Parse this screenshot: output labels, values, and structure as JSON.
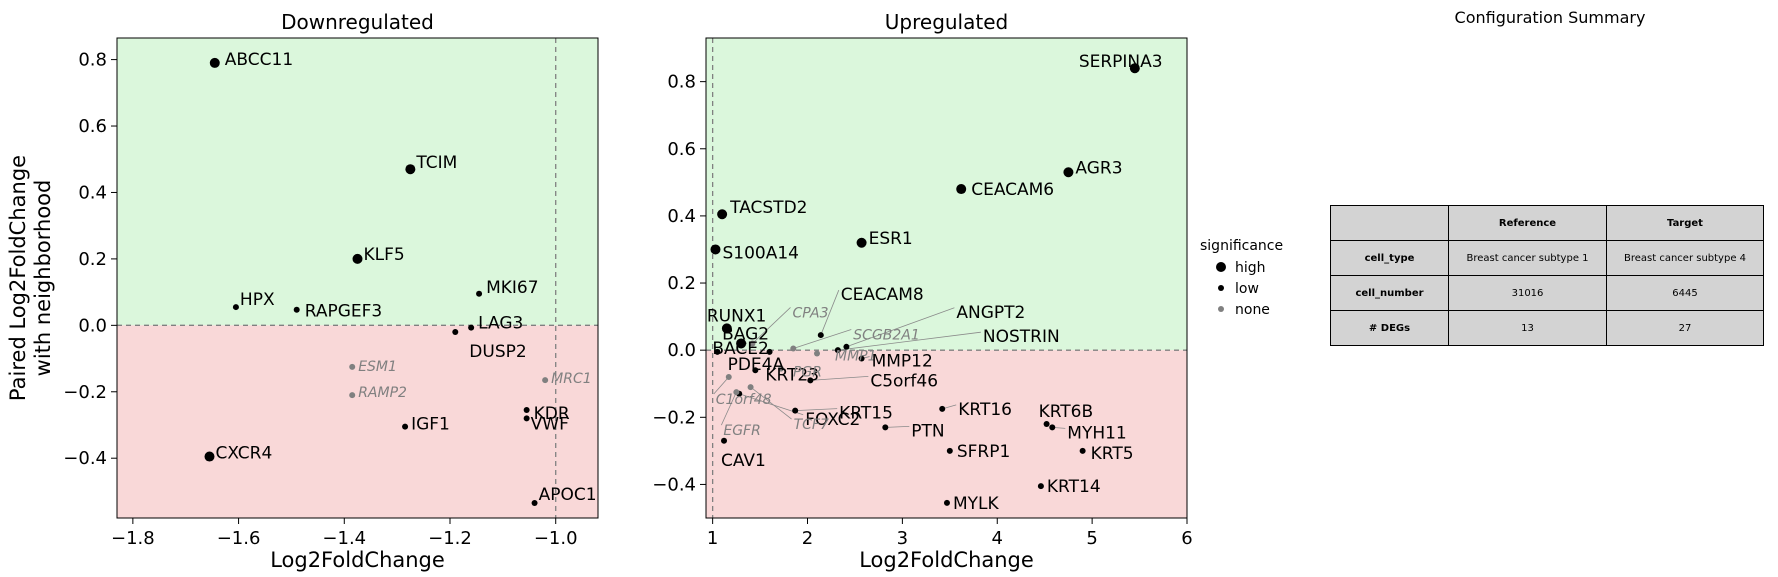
{
  "chart_data": [
    {
      "type": "scatter",
      "title": "Downregulated",
      "xlabel": "Log2FoldChange",
      "ylabel": [
        "Paired Log2FoldChange",
        "with neighborhood"
      ],
      "xlim": [
        -1.83,
        -0.92
      ],
      "ylim": [
        -0.58,
        0.865
      ],
      "xticks": [
        -1.8,
        -1.6,
        -1.4,
        -1.2,
        -1.0
      ],
      "xtick_labels": [
        "−1.8",
        "−1.6",
        "−1.4",
        "−1.2",
        "−1.0"
      ],
      "yticks": [
        -0.4,
        -0.2,
        0.0,
        0.2,
        0.4,
        0.6,
        0.8
      ],
      "ytick_labels": [
        "−0.4",
        "−0.2",
        "0.0",
        "0.2",
        "0.4",
        "0.6",
        "0.8"
      ],
      "vline": -1.0,
      "hline": 0.0,
      "points": [
        {
          "label": "ABCC11",
          "x": -1.645,
          "y": 0.79,
          "sig": "high"
        },
        {
          "label": "TCIM",
          "x": -1.275,
          "y": 0.47,
          "sig": "high"
        },
        {
          "label": "KLF5",
          "x": -1.375,
          "y": 0.2,
          "sig": "high"
        },
        {
          "label": "HPX",
          "x": -1.605,
          "y": 0.055,
          "sig": "low"
        },
        {
          "label": "RAPGEF3",
          "x": -1.49,
          "y": 0.047,
          "sig": "low"
        },
        {
          "label": "MKI67",
          "x": -1.145,
          "y": 0.095,
          "sig": "low"
        },
        {
          "label": "LAG3",
          "x": -1.16,
          "y": -0.007,
          "sig": "low"
        },
        {
          "label": "DUSP2",
          "x": -1.19,
          "y": -0.02,
          "sig": "low"
        },
        {
          "label": "ESM1",
          "x": -1.385,
          "y": -0.125,
          "sig": "none"
        },
        {
          "label": "RAMP2",
          "x": -1.385,
          "y": -0.21,
          "sig": "none"
        },
        {
          "label": "MRC1",
          "x": -1.02,
          "y": -0.165,
          "sig": "none"
        },
        {
          "label": "KDR",
          "x": -1.055,
          "y": -0.255,
          "sig": "low"
        },
        {
          "label": "VWF",
          "x": -1.055,
          "y": -0.28,
          "sig": "low"
        },
        {
          "label": "IGF1",
          "x": -1.285,
          "y": -0.305,
          "sig": "low"
        },
        {
          "label": "CXCR4",
          "x": -1.655,
          "y": -0.395,
          "sig": "high"
        },
        {
          "label": "APOC1",
          "x": -1.04,
          "y": -0.535,
          "sig": "low"
        }
      ]
    },
    {
      "type": "scatter",
      "title": "Upregulated",
      "xlabel": "Log2FoldChange",
      "xlim": [
        0.93,
        6.0
      ],
      "ylim": [
        -0.5,
        0.93
      ],
      "xticks": [
        1,
        2,
        3,
        4,
        5,
        6
      ],
      "xtick_labels": [
        "1",
        "2",
        "3",
        "4",
        "5",
        "6"
      ],
      "yticks": [
        -0.4,
        -0.2,
        0.0,
        0.2,
        0.4,
        0.6,
        0.8
      ],
      "ytick_labels": [
        "−0.4",
        "−0.2",
        "0.0",
        "0.2",
        "0.4",
        "0.6",
        "0.8"
      ],
      "vline": 1.0,
      "hline": 0.0,
      "points": [
        {
          "label": "SERPINA3",
          "x": 5.45,
          "y": 0.84,
          "sig": "high"
        },
        {
          "label": "AGR3",
          "x": 4.75,
          "y": 0.53,
          "sig": "high"
        },
        {
          "label": "CEACAM6",
          "x": 3.62,
          "y": 0.48,
          "sig": "high"
        },
        {
          "label": "TACSTD2",
          "x": 1.1,
          "y": 0.405,
          "sig": "high"
        },
        {
          "label": "ESR1",
          "x": 2.57,
          "y": 0.32,
          "sig": "high"
        },
        {
          "label": "S100A14",
          "x": 1.03,
          "y": 0.3,
          "sig": "high"
        },
        {
          "label": "RUNX1",
          "x": 1.15,
          "y": 0.065,
          "sig": "high"
        },
        {
          "label": "CEACAM8",
          "x": 2.14,
          "y": 0.045,
          "sig": "low"
        },
        {
          "label": "ANGPT2",
          "x": 2.41,
          "y": 0.01,
          "sig": "low"
        },
        {
          "label": "NOSTRIN",
          "x": 2.32,
          "y": 0.0,
          "sig": "low"
        },
        {
          "label": "CPA3",
          "x": 1.42,
          "y": 0.02,
          "sig": "none"
        },
        {
          "label": "SCGB2A1",
          "x": 1.85,
          "y": 0.005,
          "sig": "none"
        },
        {
          "label": "MMP1",
          "x": 2.1,
          "y": -0.01,
          "sig": "none"
        },
        {
          "label": "BAG2",
          "x": 1.3,
          "y": 0.02,
          "sig": "high"
        },
        {
          "label": "BACE2",
          "x": 1.05,
          "y": -0.005,
          "sig": "low"
        },
        {
          "label": "MMP12",
          "x": 2.57,
          "y": -0.025,
          "sig": "low"
        },
        {
          "label": "PDE4A",
          "x": 1.6,
          "y": -0.005,
          "sig": "low"
        },
        {
          "label": "KRT23",
          "x": 1.45,
          "y": -0.06,
          "sig": "low"
        },
        {
          "label": "PGR",
          "x": 1.72,
          "y": -0.055,
          "sig": "none"
        },
        {
          "label": "C5orf46",
          "x": 2.03,
          "y": -0.09,
          "sig": "low"
        },
        {
          "label": "C1orf48",
          "x": 1.17,
          "y": -0.08,
          "sig": "none"
        },
        {
          "label": "FOXC2",
          "x": 1.28,
          "y": -0.13,
          "sig": "low"
        },
        {
          "label": "EGFR",
          "x": 1.25,
          "y": -0.125,
          "sig": "none"
        },
        {
          "label": "KRT15",
          "x": 1.87,
          "y": -0.18,
          "sig": "low"
        },
        {
          "label": "TCF7",
          "x": 1.4,
          "y": -0.11,
          "sig": "none"
        },
        {
          "label": "KRT16",
          "x": 3.42,
          "y": -0.175,
          "sig": "low"
        },
        {
          "label": "KRT6B",
          "x": 4.52,
          "y": -0.22,
          "sig": "low"
        },
        {
          "label": "MYH11",
          "x": 4.58,
          "y": -0.23,
          "sig": "low"
        },
        {
          "label": "PTN",
          "x": 2.82,
          "y": -0.23,
          "sig": "low"
        },
        {
          "label": "CAV1",
          "x": 1.12,
          "y": -0.27,
          "sig": "low"
        },
        {
          "label": "SFRP1",
          "x": 3.5,
          "y": -0.3,
          "sig": "low"
        },
        {
          "label": "KRT5",
          "x": 4.9,
          "y": -0.3,
          "sig": "low"
        },
        {
          "label": "KRT14",
          "x": 4.46,
          "y": -0.405,
          "sig": "low"
        },
        {
          "label": "MYLK",
          "x": 3.47,
          "y": -0.455,
          "sig": "low"
        }
      ]
    }
  ],
  "legend": {
    "title": "significance",
    "items": [
      {
        "label": "high",
        "sig": "high"
      },
      {
        "label": "low",
        "sig": "low"
      },
      {
        "label": "none",
        "sig": "none"
      }
    ]
  },
  "colors": {
    "up_region": "#dbf7dc",
    "down_region": "#f9d8d8",
    "high": "#000000",
    "low": "#000000",
    "none": "#808080",
    "table_cell": "#d3d3d3"
  },
  "config": {
    "title": "Configuration Summary",
    "columns": [
      "",
      "Reference",
      "Target"
    ],
    "rows": [
      {
        "name": "cell_type",
        "reference": "Breast cancer subtype 1",
        "target": "Breast cancer subtype 4"
      },
      {
        "name": "cell_number",
        "reference": "31016",
        "target": "6445"
      },
      {
        "name": "# DEGs",
        "reference": "13",
        "target": "27"
      }
    ]
  }
}
